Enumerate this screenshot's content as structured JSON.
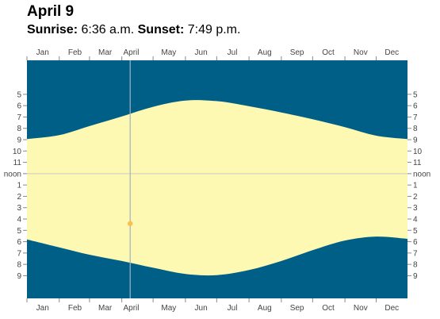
{
  "header": {
    "date": "April 9",
    "sunrise_label": "Sunrise:",
    "sunrise_time": "6:36 a.m.",
    "sunset_label": "Sunset:",
    "sunset_time": "7:49 p.m."
  },
  "colors": {
    "night": "#005f87",
    "day": "#fdf9b3",
    "marker": "#fbbf4d",
    "cursor_line": "#9fb3bd",
    "noon_line": "#c8c8c8"
  },
  "chart_data": {
    "type": "area",
    "title": "",
    "xlabel": "",
    "ylabel": "",
    "x_ticks": [
      "Jan",
      "Feb",
      "Mar",
      "April",
      "May",
      "Jun",
      "Jul",
      "Aug",
      "Sep",
      "Oct",
      "Nov",
      "Dec"
    ],
    "y_ticks": [
      "5",
      "6",
      "7",
      "8",
      "9",
      "10",
      "11",
      "noon",
      "1",
      "2",
      "3",
      "4",
      "5",
      "6",
      "7",
      "8",
      "9"
    ],
    "ylim_hours": [
      2.0,
      23.0
    ],
    "y_tick_hours": [
      5,
      6,
      7,
      8,
      9,
      10,
      11,
      12,
      13,
      14,
      15,
      16,
      17,
      18,
      19,
      20,
      21
    ],
    "series": [
      {
        "role": "sunrise",
        "x": [
          "2000-01-01",
          "2000-02-01",
          "2000-03-01",
          "2000-04-01",
          "2000-05-01",
          "2000-06-01",
          "2000-07-01",
          "2000-08-01",
          "2000-09-01",
          "2000-10-01",
          "2000-11-01",
          "2000-12-01",
          "2000-12-31"
        ],
        "y_hours": [
          8.95,
          8.6,
          7.8,
          6.95,
          6.1,
          5.55,
          5.6,
          6.05,
          6.6,
          7.2,
          7.9,
          8.65,
          8.95
        ]
      },
      {
        "role": "sunset",
        "x": [
          "2000-01-01",
          "2000-02-01",
          "2000-03-01",
          "2000-04-01",
          "2000-05-01",
          "2000-06-01",
          "2000-07-01",
          "2000-08-01",
          "2000-09-01",
          "2000-10-01",
          "2000-11-01",
          "2000-12-01",
          "2000-12-31"
        ],
        "y_hours": [
          17.8,
          18.5,
          19.15,
          19.7,
          20.3,
          20.85,
          20.95,
          20.5,
          19.7,
          18.75,
          17.9,
          17.55,
          17.75
        ]
      }
    ],
    "selected_date": "2000-04-09",
    "marker": {
      "x": "2000-04-09",
      "y_hours": 16.4
    }
  }
}
